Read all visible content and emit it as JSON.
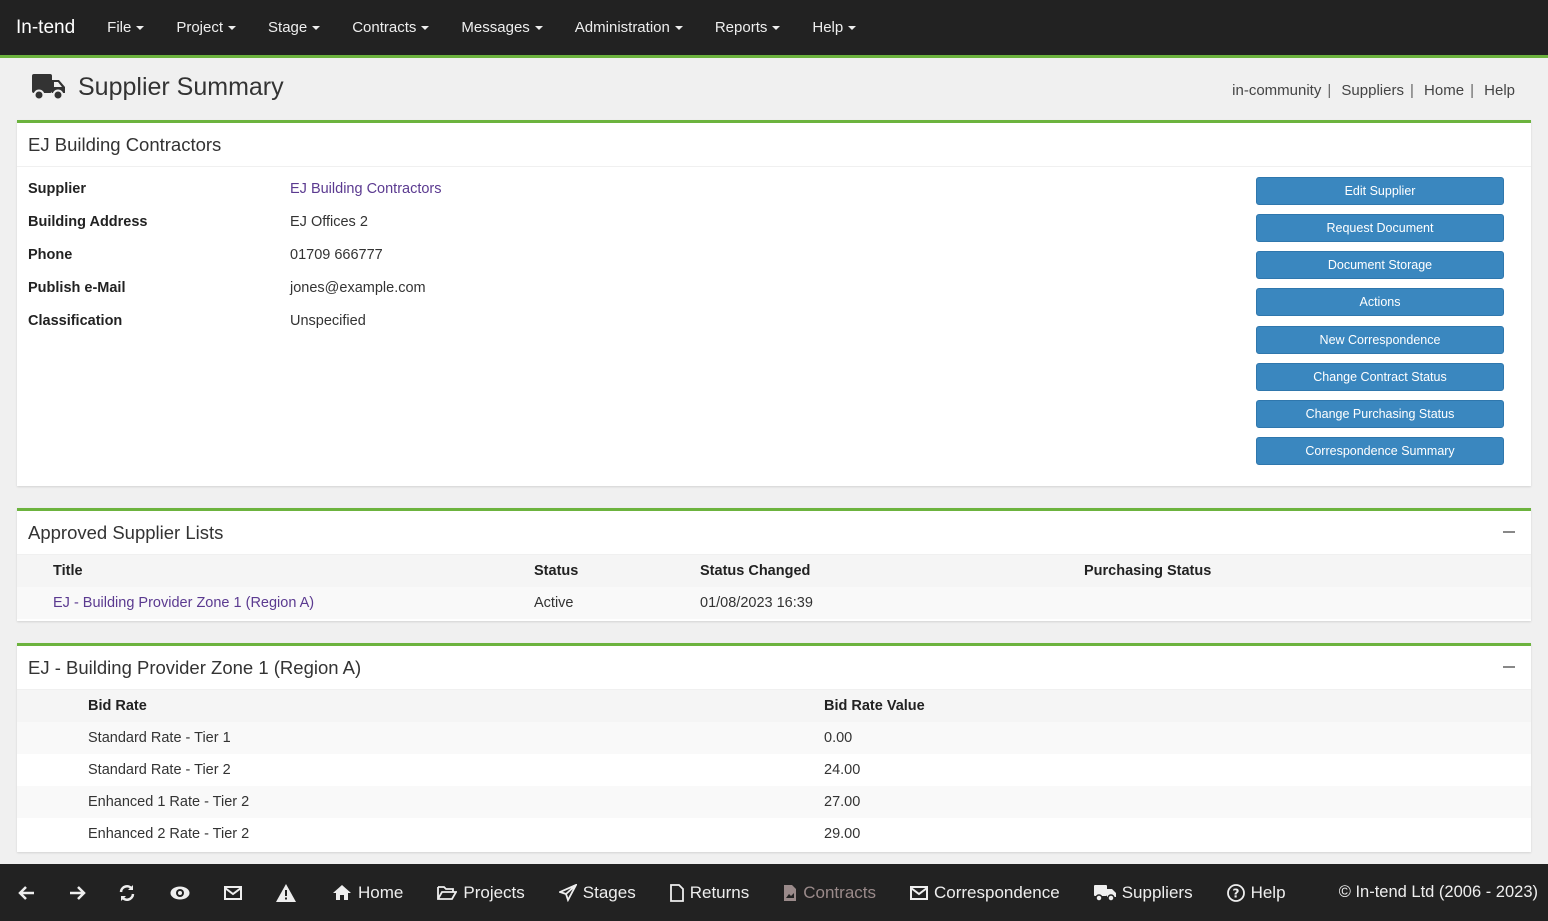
{
  "nav": {
    "brand": "In-tend",
    "items": [
      "File",
      "Project",
      "Stage",
      "Contracts",
      "Messages",
      "Administration",
      "Reports",
      "Help"
    ]
  },
  "header": {
    "title": "Supplier Summary",
    "icon": "truck-icon",
    "links": [
      "in-community",
      "Suppliers",
      "Home",
      "Help"
    ]
  },
  "supplier_panel": {
    "title": "EJ Building Contractors",
    "fields": [
      {
        "label": "Supplier",
        "value": "EJ Building Contractors"
      },
      {
        "label": "Building Address",
        "value": "EJ Offices 2"
      },
      {
        "label": "Phone",
        "value": "01709 666777"
      },
      {
        "label": "Publish e-Mail",
        "value": "jones@example.com"
      },
      {
        "label": "Classification",
        "value": "Unspecified"
      }
    ],
    "buttons": [
      "Edit Supplier",
      "Request Document",
      "Document Storage",
      "Actions",
      "New Correspondence",
      "Change Contract Status",
      "Change Purchasing Status",
      "Correspondence Summary"
    ]
  },
  "approved_lists": {
    "title": "Approved Supplier Lists",
    "columns": [
      "Title",
      "Status",
      "Status Changed",
      "Purchasing Status"
    ],
    "rows": [
      {
        "title": "EJ - Building Provider Zone 1 (Region A)",
        "status": "Active",
        "status_changed": "01/08/2023 16:39",
        "purchasing_status": ""
      }
    ]
  },
  "bid_rates": {
    "title": "EJ - Building Provider Zone 1 (Region A)",
    "columns": [
      "Bid Rate",
      "Bid Rate Value"
    ],
    "rows": [
      {
        "rate": "Standard Rate - Tier 1",
        "value": "0.00"
      },
      {
        "rate": "Standard Rate - Tier 2",
        "value": "24.00"
      },
      {
        "rate": "Enhanced 1 Rate - Tier 2",
        "value": "27.00"
      },
      {
        "rate": "Enhanced 2 Rate - Tier 2",
        "value": "29.00"
      }
    ]
  },
  "bottom": {
    "items": [
      "Home",
      "Projects",
      "Stages",
      "Returns",
      "Contracts",
      "Correspondence",
      "Suppliers",
      "Help"
    ],
    "copyright": "© In-tend Ltd (2006 - 2023)"
  },
  "colors": {
    "accent": "#6cb33e",
    "button": "#3a87bf",
    "link": "#5b3a90",
    "navbar": "#222222",
    "disabled": "#9a8a8a"
  }
}
